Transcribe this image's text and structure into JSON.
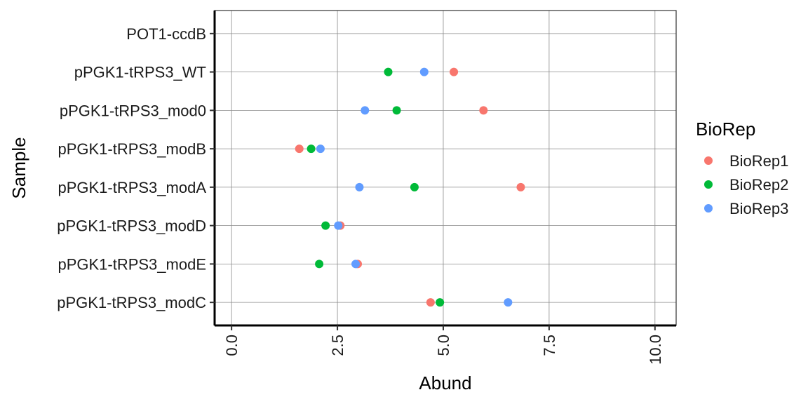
{
  "chart_data": {
    "type": "scatter",
    "xlabel": "Abund",
    "ylabel": "Sample",
    "xlim": [
      -0.4,
      10.5
    ],
    "x_ticks": [
      "0.0",
      "2.5",
      "5.0",
      "7.5",
      "10.0"
    ],
    "x_tick_values": [
      0,
      2.5,
      5,
      7.5,
      10
    ],
    "categories": [
      "POT1-ccdB",
      "pPGK1-tRPS3_WT",
      "pPGK1-tRPS3_mod0",
      "pPGK1-tRPS3_modB",
      "pPGK1-tRPS3_modA",
      "pPGK1-tRPS3_modD",
      "pPGK1-tRPS3_modE",
      "pPGK1-tRPS3_modC"
    ],
    "grid": true,
    "legend": {
      "title": "BioRep",
      "placement": "right"
    },
    "series": [
      {
        "name": "BioRep1",
        "color": "#F8766D",
        "values": [
          null,
          5.25,
          5.95,
          1.6,
          6.83,
          2.57,
          2.98,
          4.7
        ]
      },
      {
        "name": "BioRep2",
        "color": "#00BA38",
        "values": [
          null,
          3.7,
          3.9,
          1.88,
          4.32,
          2.22,
          2.07,
          4.92
        ]
      },
      {
        "name": "BioRep3",
        "color": "#619CFF",
        "values": [
          null,
          4.55,
          3.15,
          2.1,
          3.02,
          2.52,
          2.93,
          6.53
        ]
      }
    ]
  }
}
